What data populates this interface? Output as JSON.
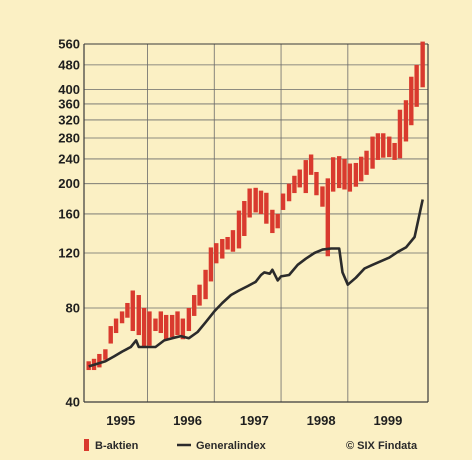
{
  "chart_data": {
    "type": "line",
    "y_scale": "log",
    "ylim": [
      40,
      560
    ],
    "y_ticks": [
      40,
      80,
      120,
      160,
      200,
      240,
      280,
      320,
      360,
      400,
      480,
      560
    ],
    "x_ticks": [
      "1995",
      "1996",
      "1997",
      "1998",
      "1999"
    ],
    "grid": true,
    "legend_placement": "bottom",
    "colors": {
      "b_aktien": "#d93a2e",
      "generalindex": "#2b2b2b",
      "background": "#fbf0c4",
      "grid": "#6a6a6a"
    },
    "series": [
      {
        "name": "B-aktien",
        "style": "high-low-bars",
        "x": [
          1994.62,
          1994.7,
          1994.78,
          1994.87,
          1994.95,
          1995.03,
          1995.12,
          1995.2,
          1995.28,
          1995.37,
          1995.45,
          1995.53,
          1995.62,
          1995.7,
          1995.78,
          1995.87,
          1995.95,
          1996.03,
          1996.12,
          1996.2,
          1996.28,
          1996.37,
          1996.45,
          1996.53,
          1996.62,
          1996.7,
          1996.78,
          1996.87,
          1996.95,
          1997.03,
          1997.12,
          1997.2,
          1997.28,
          1997.37,
          1997.45,
          1997.53,
          1997.62,
          1997.7,
          1997.78,
          1997.87,
          1997.95,
          1998.03,
          1998.12,
          1998.2,
          1998.28,
          1998.37,
          1998.45,
          1998.53,
          1998.62,
          1998.7,
          1998.78,
          1998.87,
          1998.95,
          1999.03,
          1999.12,
          1999.2,
          1999.28,
          1999.37,
          1999.45,
          1999.53,
          1999.62
        ],
        "low": [
          51,
          51,
          52,
          55,
          62,
          67,
          72,
          75,
          68,
          66,
          60,
          61,
          68,
          67,
          64,
          65,
          66,
          64,
          68,
          76,
          82,
          86,
          98,
          112,
          116,
          124,
          122,
          125,
          137,
          157,
          163,
          161,
          150,
          140,
          145,
          166,
          177,
          188,
          196,
          188,
          215,
          185,
          170,
          118,
          190,
          195,
          193,
          190,
          197,
          205,
          215,
          225,
          240,
          244,
          245,
          240,
          243,
          275,
          310,
          355,
          410
        ],
        "high": [
          54,
          55,
          57,
          59,
          70,
          74,
          78,
          83,
          91,
          88,
          80,
          78,
          74,
          78,
          76,
          76,
          78,
          74,
          80,
          88,
          95,
          106,
          125,
          129,
          133,
          135,
          142,
          164,
          176,
          193,
          194,
          190,
          187,
          165,
          160,
          186,
          200,
          212,
          222,
          238,
          248,
          218,
          196,
          208,
          243,
          245,
          240,
          232,
          233,
          244,
          255,
          283,
          290,
          290,
          283,
          270,
          345,
          370,
          440,
          480,
          570
        ]
      },
      {
        "name": "Generalindex",
        "style": "line",
        "x": [
          1994.62,
          1994.75,
          1994.87,
          1995.0,
          1995.12,
          1995.25,
          1995.33,
          1995.37,
          1995.5,
          1995.62,
          1995.75,
          1995.87,
          1996.0,
          1996.12,
          1996.25,
          1996.37,
          1996.5,
          1996.62,
          1996.75,
          1996.87,
          1997.0,
          1997.12,
          1997.2,
          1997.25,
          1997.33,
          1997.37,
          1997.45,
          1997.5,
          1997.62,
          1997.75,
          1997.87,
          1998.0,
          1998.12,
          1998.25,
          1998.37,
          1998.42,
          1998.5,
          1998.62,
          1998.75,
          1998.87,
          1999.0,
          1999.12,
          1999.25,
          1999.37,
          1999.5,
          1999.62
        ],
        "values": [
          52,
          53,
          54,
          56,
          58,
          60,
          63,
          60,
          60,
          60,
          63,
          64,
          65,
          64,
          67,
          72,
          78,
          83,
          88,
          91,
          94,
          97,
          102,
          104,
          103,
          106,
          98,
          101,
          102,
          110,
          115,
          120,
          123,
          124,
          124,
          104,
          95,
          100,
          107,
          110,
          113,
          116,
          121,
          125,
          135,
          178
        ]
      }
    ],
    "legend": [
      "B-aktien",
      "Generalindex"
    ],
    "source": "© SIX Findata"
  }
}
